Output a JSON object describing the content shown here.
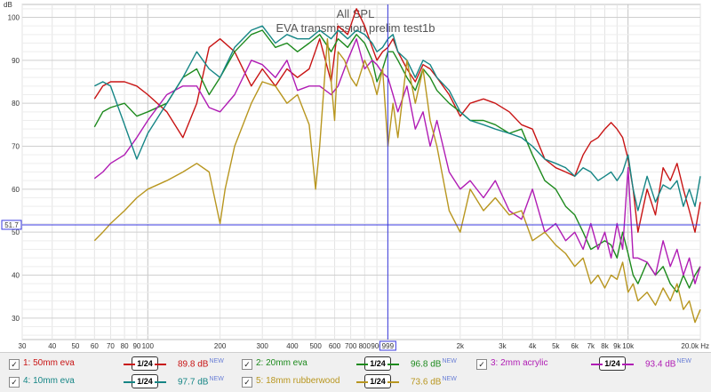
{
  "chart_data": {
    "type": "line",
    "title": "All SPL",
    "subtitle": "EVA transmission prelim test1b",
    "ylabel": "dB",
    "xlabel": "Hz",
    "xscale": "log",
    "xlim": [
      30,
      20000
    ],
    "ylim": [
      25,
      103
    ],
    "yticks": [
      30,
      40,
      50,
      60,
      70,
      80,
      90,
      100
    ],
    "xticks": [
      {
        "v": 30,
        "label": "30"
      },
      {
        "v": 40,
        "label": "40"
      },
      {
        "v": 50,
        "label": "50"
      },
      {
        "v": 60,
        "label": "60"
      },
      {
        "v": 70,
        "label": "70"
      },
      {
        "v": 80,
        "label": "80"
      },
      {
        "v": 90,
        "label": "90"
      },
      {
        "v": 100,
        "label": "100"
      },
      {
        "v": 200,
        "label": "200"
      },
      {
        "v": 300,
        "label": "300"
      },
      {
        "v": 400,
        "label": "400"
      },
      {
        "v": 500,
        "label": "500"
      },
      {
        "v": 600,
        "label": "600"
      },
      {
        "v": 700,
        "label": "700"
      },
      {
        "v": 800,
        "label": "800"
      },
      {
        "v": 900,
        "label": "900"
      },
      {
        "v": 2000,
        "label": "2k"
      },
      {
        "v": 3000,
        "label": "3k"
      },
      {
        "v": 4000,
        "label": "4k"
      },
      {
        "v": 5000,
        "label": "5k"
      },
      {
        "v": 6000,
        "label": "6k"
      },
      {
        "v": 7000,
        "label": "7k"
      },
      {
        "v": 8000,
        "label": "8k"
      },
      {
        "v": 9000,
        "label": "9k"
      },
      {
        "v": 10000,
        "label": "10k"
      },
      {
        "v": 20000,
        "label": "20.0k Hz"
      }
    ],
    "cursor": {
      "x": 999,
      "x_label": "999",
      "y": 51.7,
      "y_label": "51.7"
    },
    "grid": true,
    "legend_position": "bottom",
    "series": [
      {
        "name": "1: 50mm eva",
        "color": "#c81414",
        "smoothing": "1/24",
        "level": "89.8 dB",
        "badge": "NEW",
        "x": [
          60,
          65,
          70,
          80,
          90,
          100,
          120,
          140,
          160,
          180,
          200,
          230,
          270,
          300,
          340,
          380,
          420,
          470,
          520,
          580,
          620,
          680,
          740,
          800,
          860,
          900,
          950,
          1000,
          1050,
          1100,
          1200,
          1300,
          1400,
          1500,
          1600,
          1800,
          2000,
          2200,
          2500,
          2800,
          3200,
          3600,
          4000,
          4500,
          5000,
          5500,
          6000,
          6500,
          7000,
          7500,
          8000,
          8500,
          9000,
          9500,
          10000,
          10500,
          11000,
          12000,
          13000,
          14000,
          15000,
          16000,
          17000,
          18000,
          19000,
          20000
        ],
        "y": [
          81,
          84,
          85,
          85,
          84,
          82,
          78,
          72,
          80,
          93,
          95,
          92,
          84,
          88,
          84,
          88,
          86,
          88,
          95,
          85,
          98,
          96,
          102,
          98,
          93,
          90,
          92,
          93,
          95,
          92,
          88,
          85,
          89,
          88,
          86,
          82,
          77,
          80,
          81,
          80,
          78,
          75,
          74,
          67,
          65,
          64,
          63,
          68,
          71,
          72,
          74,
          75.5,
          74,
          72,
          67,
          60,
          50,
          60,
          54,
          65,
          62,
          66,
          60,
          55,
          50,
          57
        ]
      },
      {
        "name": "2: 20mm eva",
        "color": "#1d8a1d",
        "smoothing": "1/24",
        "level": "96.8 dB",
        "badge": "NEW",
        "x": [
          60,
          65,
          70,
          80,
          90,
          100,
          120,
          140,
          160,
          180,
          200,
          230,
          270,
          300,
          340,
          380,
          420,
          470,
          520,
          580,
          620,
          680,
          740,
          800,
          860,
          900,
          950,
          1000,
          1050,
          1100,
          1200,
          1300,
          1400,
          1500,
          1600,
          1800,
          2000,
          2200,
          2500,
          2800,
          3200,
          3600,
          4000,
          4500,
          5000,
          5500,
          6000,
          6500,
          7000,
          7500,
          8000,
          8500,
          9000,
          9500,
          10000,
          10500,
          11000,
          12000,
          13000,
          14000,
          15000,
          16000,
          17000,
          18000,
          19000,
          20000
        ],
        "y": [
          74.5,
          78,
          79,
          80,
          77,
          78,
          80,
          86,
          88,
          82,
          86,
          92,
          96,
          97,
          93,
          94,
          92,
          94,
          96,
          92,
          95,
          93,
          96,
          94,
          90,
          85,
          88,
          92,
          92,
          90,
          86,
          83,
          88,
          86,
          83,
          80,
          78,
          76,
          76,
          75,
          73,
          74,
          68,
          62,
          60,
          56,
          54,
          50,
          46,
          47,
          48,
          47,
          44,
          50,
          45,
          40,
          38,
          43,
          40,
          42,
          38,
          36,
          40,
          37,
          40,
          42
        ]
      },
      {
        "name": "3: 2mm acrylic",
        "color": "#b01cb4",
        "smoothing": "1/24",
        "level": "93.4 dB",
        "badge": "NEW",
        "x": [
          60,
          65,
          70,
          80,
          90,
          100,
          120,
          140,
          160,
          180,
          200,
          230,
          270,
          300,
          340,
          380,
          420,
          470,
          520,
          580,
          620,
          680,
          740,
          800,
          860,
          900,
          950,
          1000,
          1050,
          1100,
          1200,
          1300,
          1400,
          1500,
          1600,
          1800,
          2000,
          2200,
          2500,
          2800,
          3200,
          3600,
          4000,
          4500,
          5000,
          5500,
          6000,
          6500,
          7000,
          7500,
          8000,
          8500,
          9000,
          9500,
          10000,
          10500,
          11000,
          12000,
          13000,
          14000,
          15000,
          16000,
          17000,
          18000,
          19000,
          20000
        ],
        "y": [
          62.5,
          64,
          66,
          68,
          72,
          76,
          82,
          84,
          84,
          79,
          78,
          82,
          90,
          89,
          86,
          90,
          83,
          84,
          84,
          82,
          84,
          90,
          95,
          88,
          90,
          89,
          87,
          86,
          82,
          78,
          84,
          74,
          78,
          70,
          76,
          64,
          60,
          62,
          58,
          62,
          55,
          53,
          60,
          50,
          52,
          48,
          50,
          46,
          52,
          46,
          50,
          44,
          52,
          46,
          65,
          44,
          44,
          43,
          40,
          48,
          42,
          46,
          40,
          44,
          38,
          42
        ]
      },
      {
        "name": "4: 10mm eva",
        "color": "#158585",
        "smoothing": "1/24",
        "level": "97.7 dB",
        "badge": "NEW",
        "x": [
          60,
          65,
          70,
          80,
          90,
          100,
          120,
          140,
          160,
          180,
          200,
          230,
          270,
          300,
          340,
          380,
          420,
          470,
          520,
          580,
          620,
          680,
          740,
          800,
          860,
          900,
          950,
          1000,
          1050,
          1100,
          1200,
          1300,
          1400,
          1500,
          1600,
          1800,
          2000,
          2200,
          2500,
          2800,
          3200,
          3600,
          4000,
          4500,
          5000,
          5500,
          6000,
          6500,
          7000,
          7500,
          8000,
          8500,
          9000,
          9500,
          10000,
          10500,
          11000,
          12000,
          13000,
          14000,
          15000,
          16000,
          17000,
          18000,
          19000,
          20000
        ],
        "y": [
          84,
          85,
          84,
          75,
          67,
          73,
          80,
          86,
          92,
          88,
          86,
          93,
          97,
          98,
          94,
          96,
          95,
          95,
          97,
          95,
          97,
          95,
          97,
          96,
          94,
          92,
          93,
          95,
          96,
          92,
          90,
          86,
          90,
          89,
          86,
          83,
          78,
          76,
          75,
          74,
          73,
          72,
          70,
          67,
          66,
          65,
          63,
          65,
          64,
          62,
          63,
          64,
          62,
          64,
          68,
          60,
          55,
          63,
          57,
          61,
          60,
          62,
          56,
          60,
          56,
          63
        ]
      },
      {
        "name": "5: 18mm rubberwood",
        "color": "#b8961f",
        "smoothing": "1/24",
        "level": "73.6 dB",
        "badge": "NEW",
        "x": [
          60,
          65,
          70,
          80,
          90,
          100,
          120,
          140,
          160,
          180,
          200,
          210,
          230,
          270,
          300,
          340,
          380,
          420,
          470,
          500,
          520,
          560,
          600,
          620,
          660,
          700,
          740,
          800,
          860,
          900,
          950,
          1000,
          1050,
          1100,
          1200,
          1300,
          1400,
          1500,
          1600,
          1800,
          2000,
          2200,
          2500,
          2800,
          3200,
          3600,
          4000,
          4500,
          5000,
          5500,
          6000,
          6500,
          7000,
          7500,
          8000,
          8500,
          9000,
          9500,
          10000,
          10500,
          11000,
          12000,
          13000,
          14000,
          15000,
          16000,
          17000,
          18000,
          19000,
          20000
        ],
        "y": [
          48,
          50,
          52,
          55,
          58,
          60,
          62,
          64,
          66,
          64,
          52,
          60,
          70,
          80,
          85,
          84,
          80,
          82,
          75,
          60,
          70,
          95,
          76,
          92,
          90,
          86,
          84,
          90,
          86,
          82,
          88,
          70,
          80,
          72,
          90,
          80,
          88,
          76,
          70,
          55,
          50,
          60,
          55,
          58,
          54,
          55,
          48,
          50,
          47,
          45,
          42,
          44,
          38,
          40,
          37,
          40,
          39,
          43,
          36,
          38,
          34,
          36,
          33,
          37,
          34,
          38,
          32,
          34,
          29,
          32
        ]
      }
    ]
  },
  "legend": {
    "check_glyph": "✓",
    "smooth_label": "1/24"
  }
}
